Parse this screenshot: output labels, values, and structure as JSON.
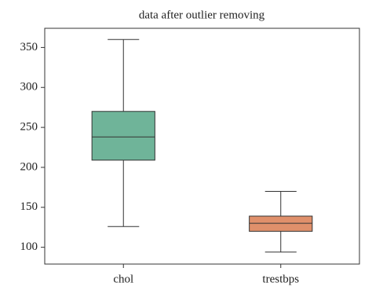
{
  "chart_data": {
    "type": "box",
    "title": "data after outlier removing",
    "categories": [
      "chol",
      "trestbps"
    ],
    "boxes": [
      {
        "min": 126,
        "q1": 209,
        "median": 238,
        "q3": 270,
        "max": 360
      },
      {
        "min": 94,
        "q1": 120,
        "median": 130,
        "q3": 139,
        "max": 170
      }
    ],
    "colors": [
      "#6fb499",
      "#e0906b"
    ],
    "ylim": [
      79,
      374
    ],
    "yticks": [
      100,
      150,
      200,
      250,
      300,
      350
    ]
  }
}
